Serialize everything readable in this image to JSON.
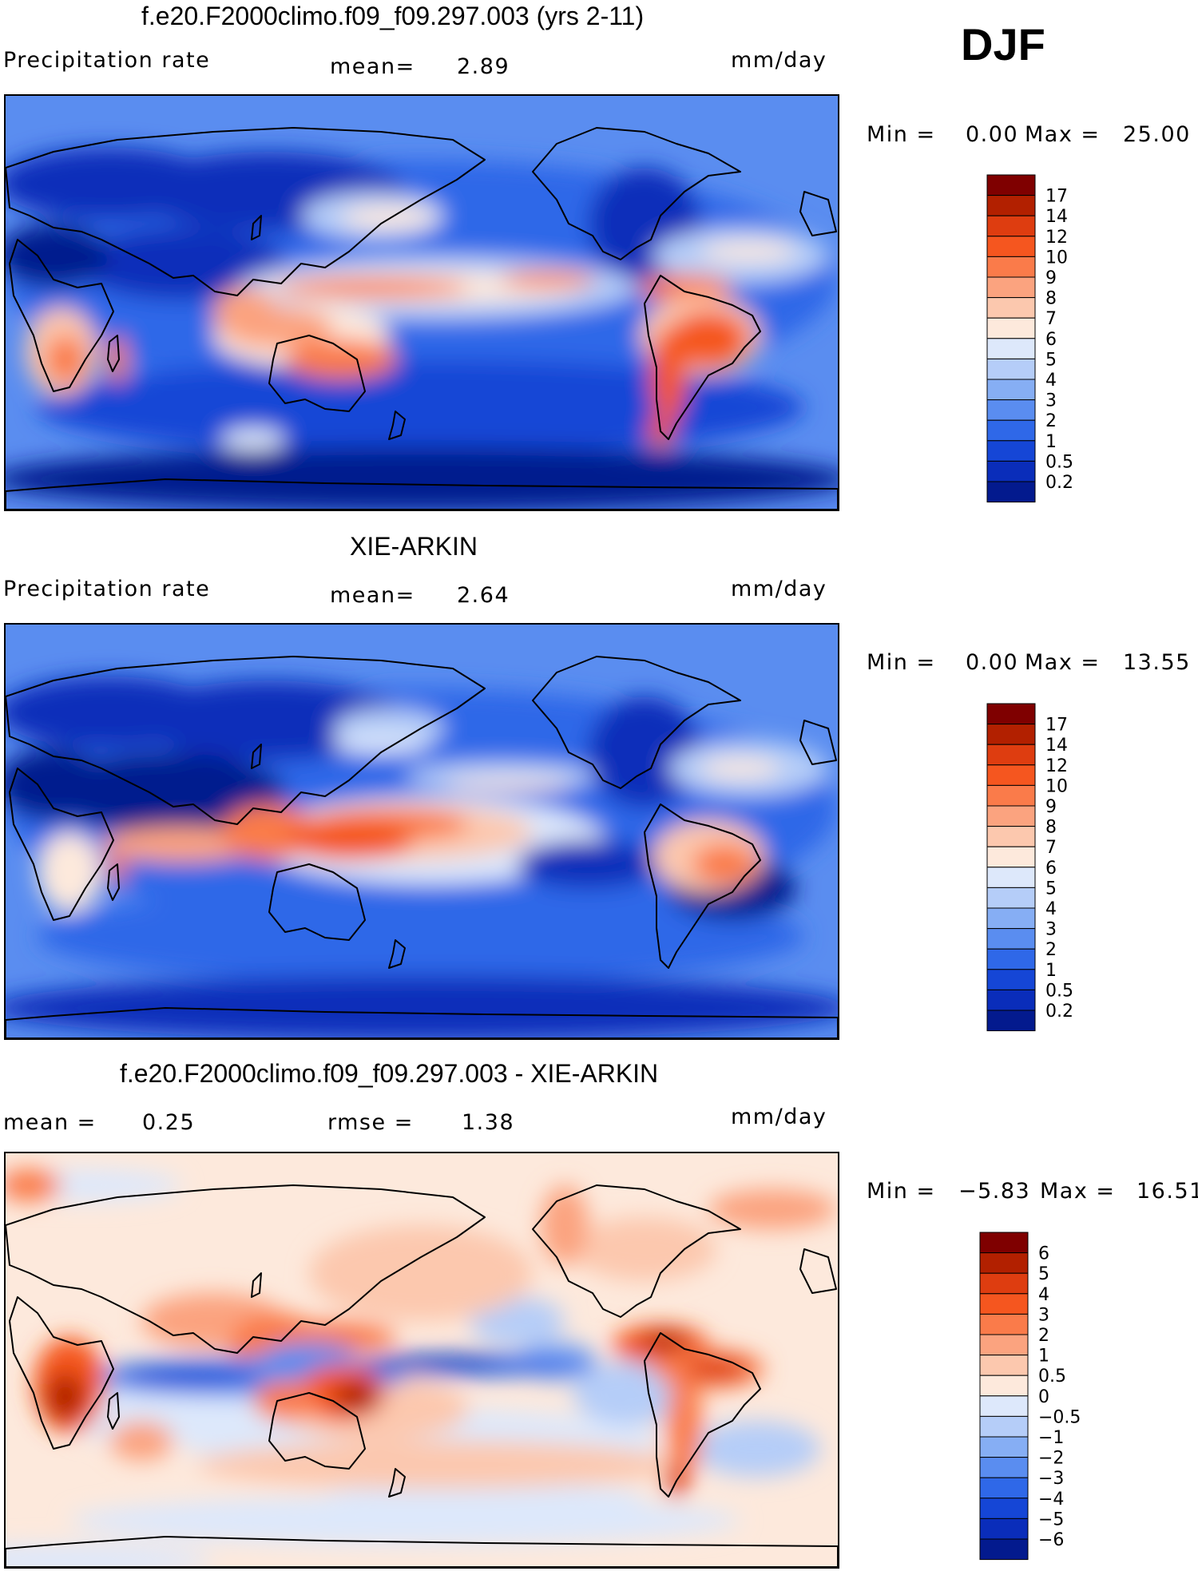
{
  "season": "DJF",
  "panels": [
    {
      "title": "f.e20.F2000climo.f09_f09.297.003 (yrs 2-11)",
      "left_label": "Precipitation rate",
      "center_label": "mean=",
      "center_value": "2.89",
      "units": "mm/day",
      "min_label": "Min =",
      "min_value": "0.00",
      "max_label": "Max =",
      "max_value": "25.00",
      "scale": "precip",
      "colorbar_labels": [
        "17",
        "14",
        "12",
        "10",
        "9",
        "8",
        "7",
        "6",
        "5",
        "4",
        "3",
        "2",
        "1",
        "0.5",
        "0.2"
      ]
    },
    {
      "title": "XIE-ARKIN",
      "left_label": "Precipitation rate",
      "center_label": "mean=",
      "center_value": "2.64",
      "units": "mm/day",
      "min_label": "Min =",
      "min_value": "0.00",
      "max_label": "Max =",
      "max_value": "13.55",
      "scale": "precip",
      "colorbar_labels": [
        "17",
        "14",
        "12",
        "10",
        "9",
        "8",
        "7",
        "6",
        "5",
        "4",
        "3",
        "2",
        "1",
        "0.5",
        "0.2"
      ]
    },
    {
      "title": "f.e20.F2000climo.f09_f09.297.003 - XIE-ARKIN",
      "left_label": "mean =",
      "left_value": "0.25",
      "center_label": "rmse =",
      "center_value": "1.38",
      "units": "mm/day",
      "min_label": "Min =",
      "min_value": "−5.83",
      "max_label": "Max =",
      "max_value": "16.51",
      "scale": "diff",
      "colorbar_labels": [
        "6",
        "5",
        "4",
        "3",
        "2",
        "1",
        "0.5",
        "0",
        "−0.5",
        "−1",
        "−2",
        "−3",
        "−4",
        "−5",
        "−6"
      ]
    }
  ],
  "colors": {
    "precip": [
      "#7f0000",
      "#b22000",
      "#de3d10",
      "#f5561f",
      "#fa7b4a",
      "#fba37f",
      "#fcc8ae",
      "#fde9dc",
      "#dde8fb",
      "#b5cdf8",
      "#86aef4",
      "#5a8df0",
      "#2f68e8",
      "#1546d6",
      "#0a2dba",
      "#031a8e"
    ],
    "diff": [
      "#7f0000",
      "#b22000",
      "#de3d10",
      "#f5561f",
      "#fa7b4a",
      "#fba37f",
      "#fcc8ae",
      "#fde9dc",
      "#dde8fb",
      "#b5cdf8",
      "#86aef4",
      "#5a8df0",
      "#2f68e8",
      "#1546d6",
      "#0a2dba",
      "#031a8e"
    ]
  }
}
